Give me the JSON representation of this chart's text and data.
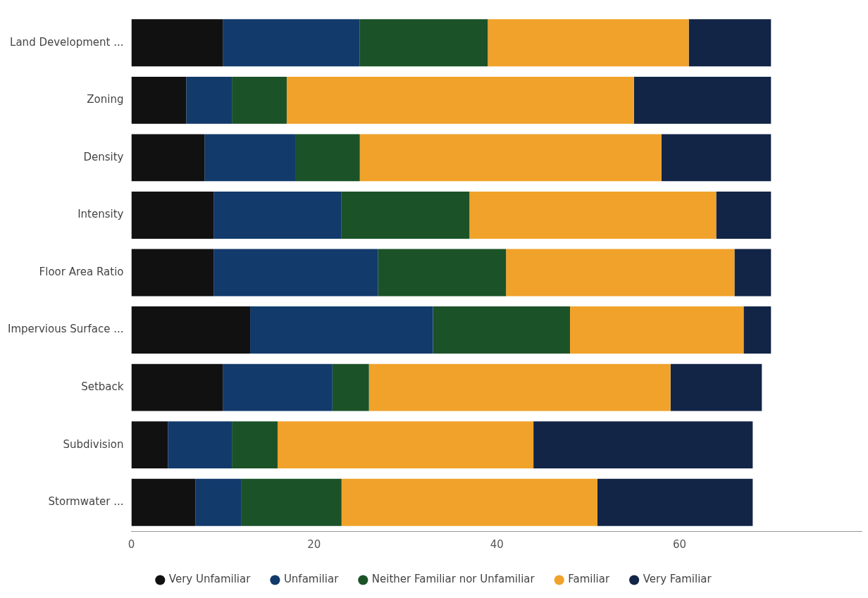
{
  "chart_data": {
    "type": "bar",
    "orientation": "horizontal",
    "stacked": true,
    "categories": [
      "Land Development ...",
      "Zoning",
      "Density",
      "Intensity",
      "Floor Area Ratio",
      "Impervious Surface ...",
      "Setback",
      "Subdivision",
      "Stormwater ..."
    ],
    "series": [
      {
        "name": "Very Unfamiliar",
        "color": "#111111",
        "values": [
          10,
          6,
          8,
          9,
          9,
          13,
          10,
          4,
          7
        ]
      },
      {
        "name": "Unfamiliar",
        "color": "#123a6b",
        "values": [
          15,
          5,
          10,
          14,
          18,
          20,
          12,
          7,
          5
        ]
      },
      {
        "name": "Neither Familiar nor Unfamiliar",
        "color": "#1b5228",
        "values": [
          14,
          6,
          7,
          14,
          14,
          15,
          4,
          5,
          11
        ]
      },
      {
        "name": "Familiar",
        "color": "#f0a22a",
        "values": [
          22,
          38,
          33,
          27,
          25,
          19,
          33,
          28,
          28
        ]
      },
      {
        "name": "Very Familiar",
        "color": "#122547",
        "values": [
          9,
          15,
          12,
          6,
          4,
          3,
          10,
          24,
          17
        ]
      }
    ],
    "xlim": [
      0,
      80
    ],
    "xticks": [
      0,
      20,
      40,
      60
    ],
    "grid": false,
    "legend": "bottom"
  }
}
